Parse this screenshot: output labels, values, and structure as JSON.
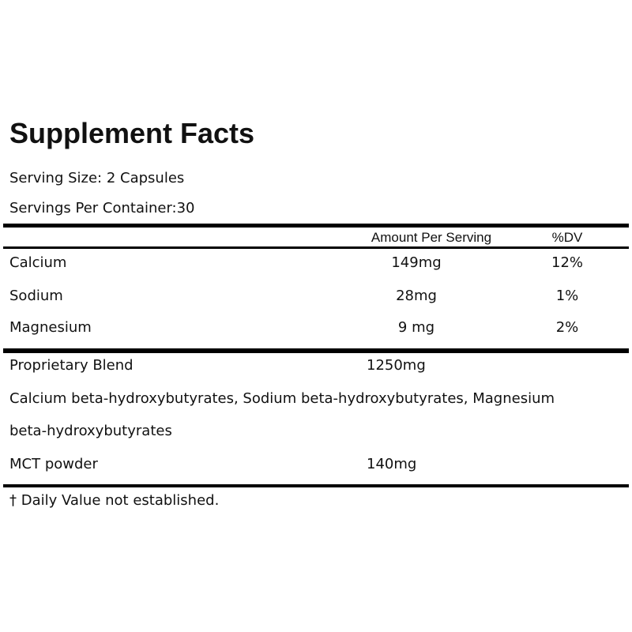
{
  "title": "Supplement Facts",
  "serving_size": "Serving Size: 2 Capsules",
  "servings_per_container": "Servings Per Container:30",
  "header": {
    "amount": "Amount Per Serving",
    "dv": "%DV"
  },
  "nutrients": [
    {
      "name": "Calcium",
      "amount": "149mg",
      "dv": "12%"
    },
    {
      "name": "Sodium",
      "amount": "28mg",
      "dv": "1%"
    },
    {
      "name": "Magnesium",
      "amount": "9 mg",
      "dv": "2%"
    }
  ],
  "blend": {
    "name": "Proprietary Blend",
    "amount": "1250mg",
    "ingredients_line1": "Calcium beta-hydroxybutyrates, Sodium beta-hydroxybutyrates, Magnesium",
    "ingredients_line2": "beta-hydroxybutyrates"
  },
  "mct": {
    "name": "MCT powder",
    "amount": "140mg"
  },
  "footnote": "† Daily Value not established."
}
